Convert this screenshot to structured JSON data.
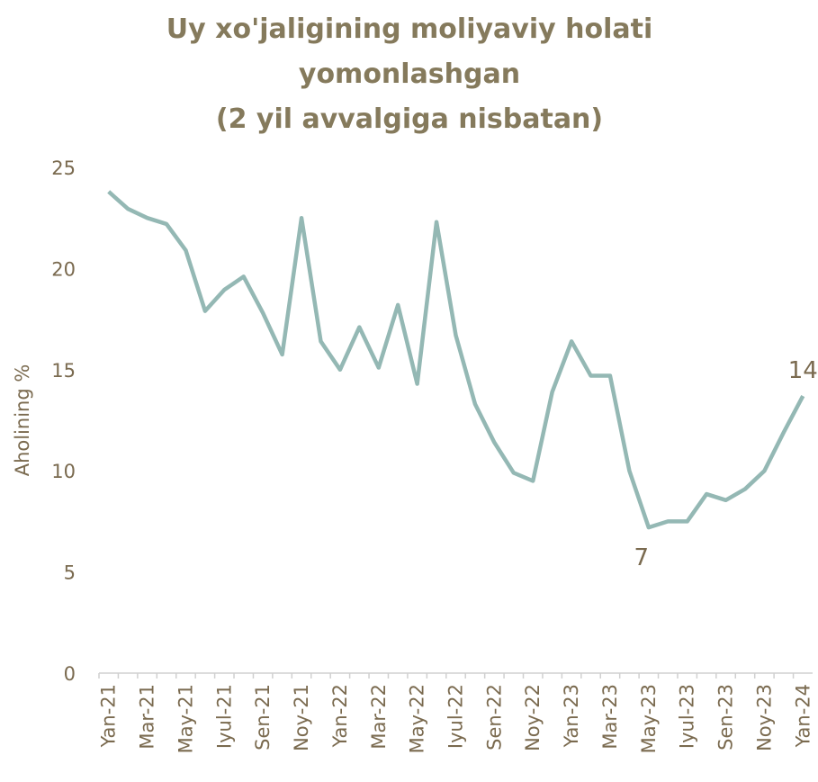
{
  "chart_data": {
    "type": "line",
    "title": [
      "Uy xo'jaligining moliyaviy holati",
      "yomonlashgan",
      "(2 yil avvalgiga nisbatan)"
    ],
    "y_label": "Aholining %",
    "categories": [
      "Yan-21",
      null,
      "Mar-21",
      null,
      "May-21",
      null,
      "Iyul-21",
      null,
      "Sen-21",
      null,
      "Noy-21",
      null,
      "Yan-22",
      null,
      "Mar-22",
      null,
      "May-22",
      null,
      "Iyul-22",
      null,
      "Sen-22",
      null,
      "Noy-22",
      null,
      "Yan-23",
      null,
      "Mar-23",
      null,
      "May-23",
      null,
      "Iyul-23",
      null,
      "Sen-23",
      null,
      "Noy-23",
      null,
      "Yan-24"
    ],
    "series": [
      {
        "color": "#94b8b4",
        "values": [
          23.8,
          22.95,
          22.5,
          22.2,
          20.9,
          17.9,
          18.95,
          19.6,
          17.8,
          15.75,
          22.5,
          16.4,
          15.0,
          17.1,
          15.1,
          18.2,
          14.3,
          22.3,
          16.7,
          13.3,
          11.4,
          9.9,
          9.5,
          13.9,
          16.4,
          14.7,
          14.7,
          10.0,
          7.2,
          7.5,
          7.5,
          8.85,
          8.55,
          9.1,
          10.0,
          11.9,
          13.7
        ],
        "value_labels": [
          null,
          null,
          null,
          null,
          null,
          null,
          null,
          null,
          null,
          null,
          null,
          null,
          null,
          null,
          null,
          null,
          null,
          null,
          null,
          null,
          null,
          null,
          null,
          null,
          null,
          null,
          null,
          null,
          "7",
          null,
          null,
          null,
          null,
          null,
          null,
          null,
          "14"
        ]
      }
    ],
    "ylim": [
      0,
      25
    ],
    "yticks": [
      0,
      5,
      10,
      15,
      20,
      25
    ],
    "grid": false
  }
}
